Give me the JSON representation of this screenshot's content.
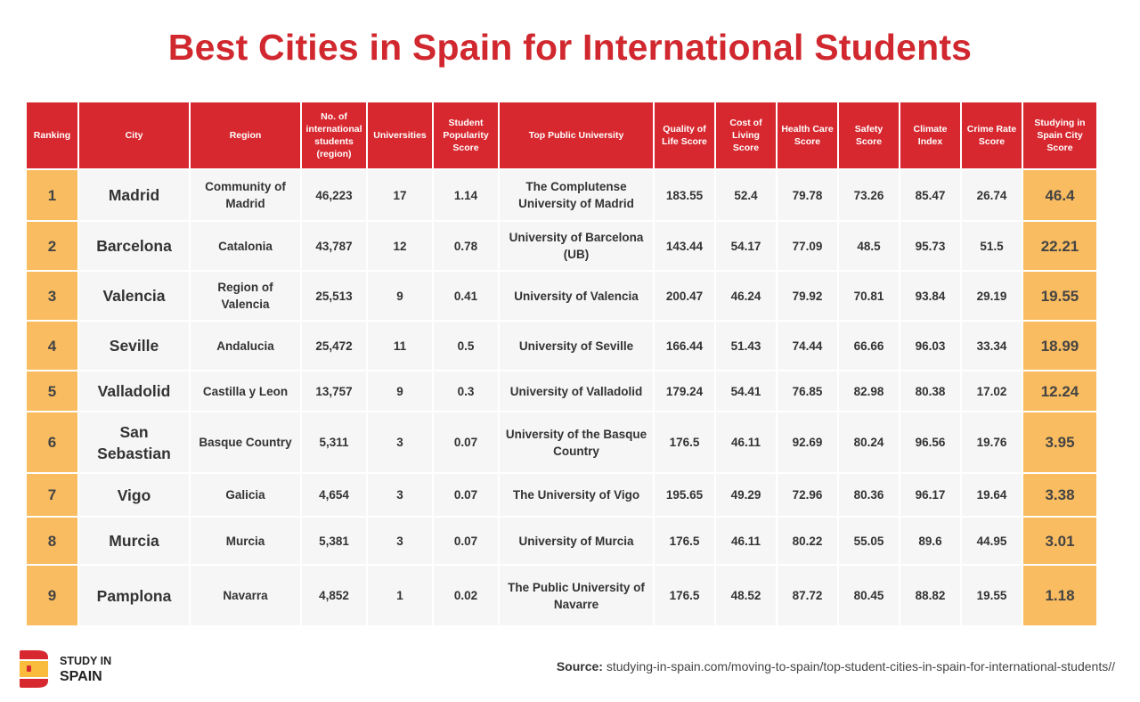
{
  "title": "Best Cities in Spain for International Students",
  "columns": [
    "Ranking",
    "City",
    "Region",
    "No. of international students (region)",
    "Universities",
    "Student Popularity Score",
    "Top Public University",
    "Quality of Life Score",
    "Cost of Living Score",
    "Health Care Score",
    "Safety Score",
    "Climate Index",
    "Crime Rate Score",
    "Studying in Spain City Score"
  ],
  "rows": [
    [
      "1",
      "Madrid",
      "Community of Madrid",
      "46,223",
      "17",
      "1.14",
      "The Complutense University of Madrid",
      "183.55",
      "52.4",
      "79.78",
      "73.26",
      "85.47",
      "26.74",
      "46.4"
    ],
    [
      "2",
      "Barcelona",
      "Catalonia",
      "43,787",
      "12",
      "0.78",
      "University of Barcelona (UB)",
      "143.44",
      "54.17",
      "77.09",
      "48.5",
      "95.73",
      "51.5",
      "22.21"
    ],
    [
      "3",
      "Valencia",
      "Region of Valencia",
      "25,513",
      "9",
      "0.41",
      "University of Valencia",
      "200.47",
      "46.24",
      "79.92",
      "70.81",
      "93.84",
      "29.19",
      "19.55"
    ],
    [
      "4",
      "Seville",
      "Andalucia",
      "25,472",
      "11",
      "0.5",
      "University of Seville",
      "166.44",
      "51.43",
      "74.44",
      "66.66",
      "96.03",
      "33.34",
      "18.99"
    ],
    [
      "5",
      "Valladolid",
      "Castilla y Leon",
      "13,757",
      "9",
      "0.3",
      "University of Valladolid",
      "179.24",
      "54.41",
      "76.85",
      "82.98",
      "80.38",
      "17.02",
      "12.24"
    ],
    [
      "6",
      "San Sebastian",
      "Basque Country",
      "5,311",
      "3",
      "0.07",
      "University of the Basque Country",
      "176.5",
      "46.11",
      "92.69",
      "80.24",
      "96.56",
      "19.76",
      "3.95"
    ],
    [
      "7",
      "Vigo",
      "Galicia",
      "4,654",
      "3",
      "0.07",
      "The University of Vigo",
      "195.65",
      "49.29",
      "72.96",
      "80.36",
      "96.17",
      "19.64",
      "3.38"
    ],
    [
      "8",
      "Murcia",
      "Murcia",
      "5,381",
      "3",
      "0.07",
      "University of Murcia",
      "176.5",
      "46.11",
      "80.22",
      "55.05",
      "89.6",
      "44.95",
      "3.01"
    ],
    [
      "9",
      "Pamplona",
      "Navarra",
      "4,852",
      "1",
      "0.02",
      "The Public University of Navarre",
      "176.5",
      "48.52",
      "87.72",
      "80.45",
      "88.82",
      "19.55",
      "1.18"
    ]
  ],
  "logo": {
    "line1": "STUDY IN",
    "line2": "SPAIN",
    "flag_colors": [
      "#d7282f",
      "#f9bc3c"
    ]
  },
  "source": {
    "label": "Source:",
    "text": "studying-in-spain.com/moving-to-spain/top-student-cities-in-spain-for-international-students//"
  },
  "colors": {
    "title": "#d0282e",
    "header_bg": "#d7282f",
    "rank_score_bg": "#f9bc60",
    "cell_bg": "#f6f6f6"
  }
}
